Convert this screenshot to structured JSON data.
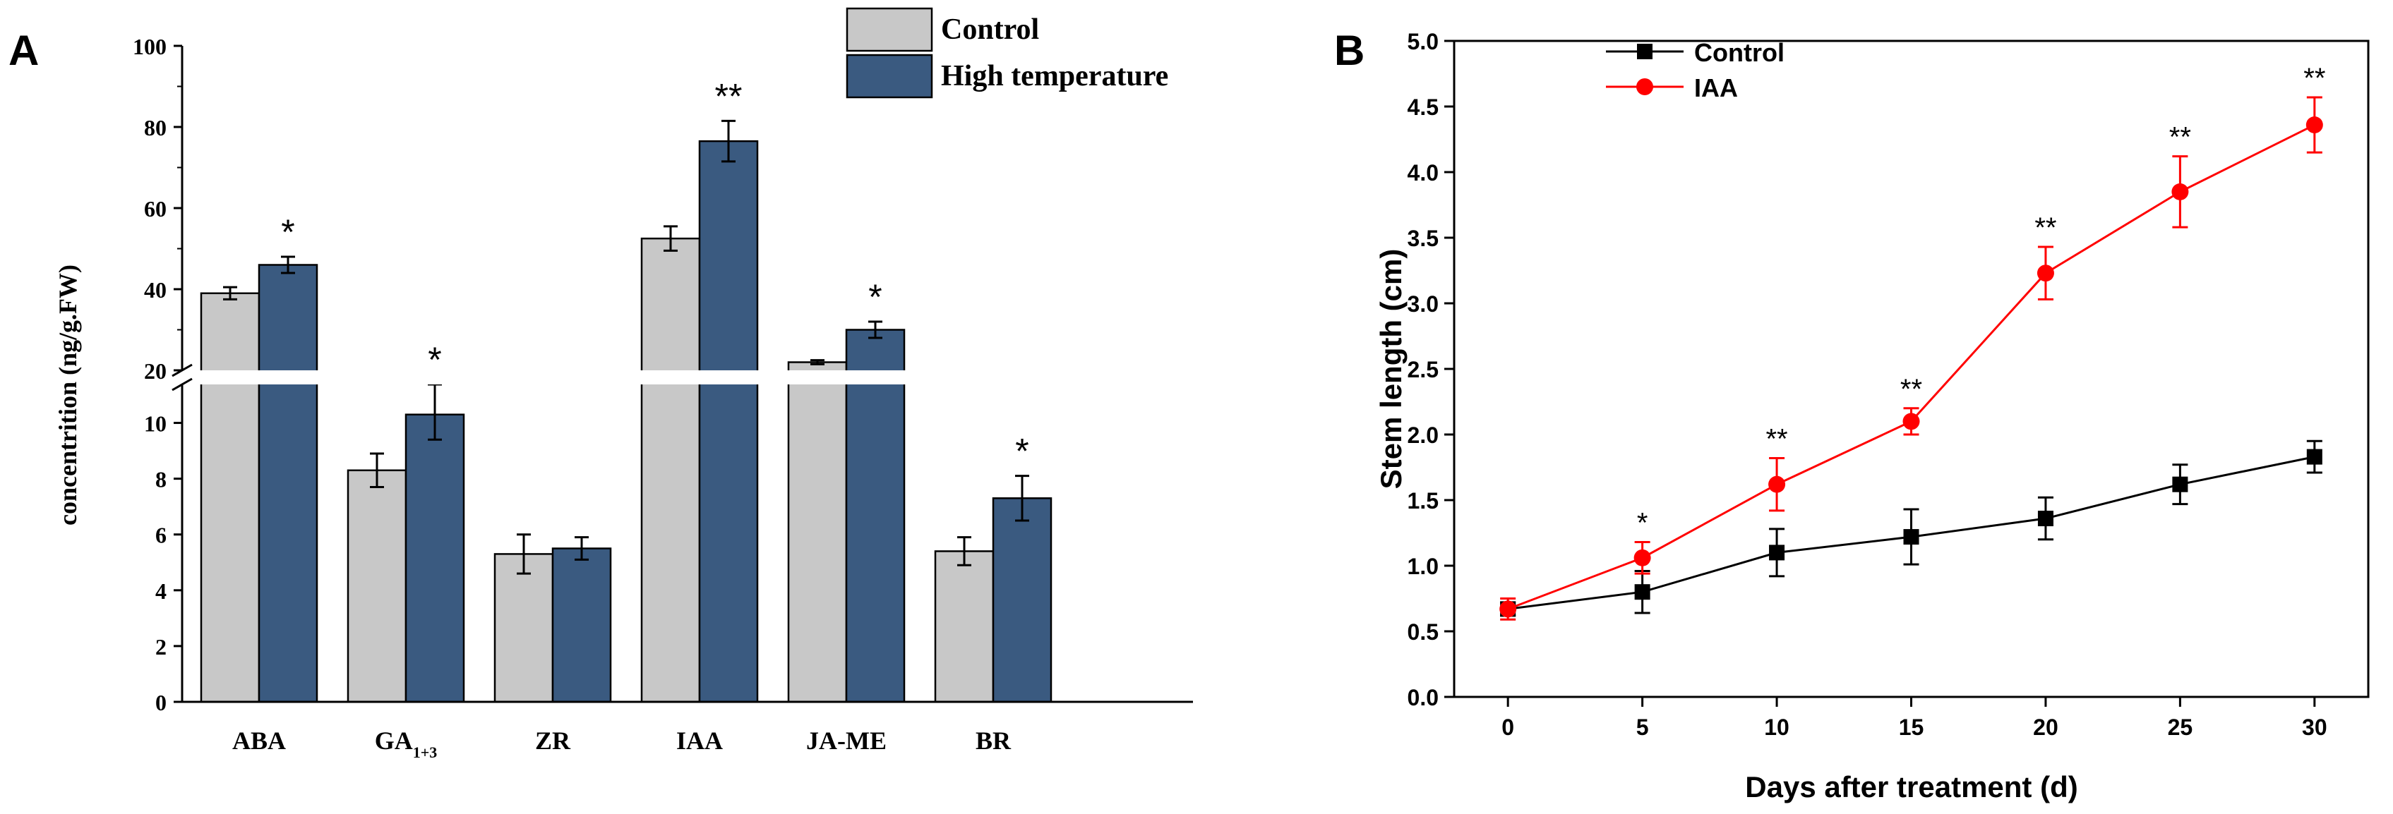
{
  "colors": {
    "control_bar": "#c8c8c8",
    "treatment_bar": "#3a5a80",
    "line_control": "#000000",
    "line_iaa": "#ff0000"
  },
  "chart_data": [
    {
      "panel": "A",
      "type": "bar",
      "ylabel": "concentrition (ng/g.FW)",
      "xlabel": "",
      "legend_position": "top-right",
      "axis_break": {
        "lower_range": [
          0,
          11
        ],
        "upper_range": [
          20,
          100
        ]
      },
      "lower_ticks": [
        0,
        2,
        4,
        6,
        8,
        10
      ],
      "upper_ticks": [
        20,
        40,
        60,
        80,
        100
      ],
      "categories": [
        {
          "base": "ABA",
          "sub": ""
        },
        {
          "base": "GA",
          "sub": "1+3"
        },
        {
          "base": "ZR",
          "sub": ""
        },
        {
          "base": "IAA",
          "sub": ""
        },
        {
          "base": "JA-ME",
          "sub": ""
        },
        {
          "base": "BR",
          "sub": ""
        }
      ],
      "series": [
        {
          "name": "Control",
          "values": [
            39,
            8.3,
            5.3,
            52.5,
            22,
            5.4
          ],
          "errors": [
            1.5,
            0.6,
            0.7,
            3,
            0.5,
            0.5
          ]
        },
        {
          "name": "High temperature",
          "values": [
            46,
            10.3,
            5.5,
            76.5,
            30,
            7.3
          ],
          "errors": [
            2,
            0.9,
            0.4,
            5,
            2,
            0.8
          ]
        }
      ],
      "significance": [
        "*",
        "*",
        "",
        "**",
        "*",
        "*"
      ]
    },
    {
      "panel": "B",
      "type": "line",
      "xlabel": "Days after treatment (d)",
      "ylabel": "Stem length (cm)",
      "xlim": [
        -2,
        32
      ],
      "ylim": [
        0,
        5
      ],
      "xticks": [
        0,
        5,
        10,
        15,
        20,
        25,
        30
      ],
      "yticks": [
        "0.0",
        "0.5",
        "1.0",
        "1.5",
        "2.0",
        "2.5",
        "3.0",
        "3.5",
        "4.0",
        "4.5",
        "5.0"
      ],
      "legend_position": "top-left",
      "x": [
        0,
        5,
        10,
        15,
        20,
        25,
        30
      ],
      "series": [
        {
          "name": "Control",
          "marker": "square",
          "values": [
            0.67,
            0.8,
            1.1,
            1.22,
            1.36,
            1.62,
            1.83
          ],
          "errors": [
            0.05,
            0.16,
            0.18,
            0.21,
            0.16,
            0.15,
            0.12
          ]
        },
        {
          "name": "IAA",
          "marker": "circle",
          "values": [
            0.67,
            1.06,
            1.62,
            2.1,
            3.23,
            3.85,
            4.36
          ],
          "errors": [
            0.08,
            0.12,
            0.2,
            0.1,
            0.2,
            0.27,
            0.21
          ]
        }
      ],
      "significance": [
        "",
        "*",
        "**",
        "**",
        "**",
        "**",
        "**"
      ]
    }
  ],
  "panel_labels": {
    "a": "A",
    "b": "B"
  }
}
